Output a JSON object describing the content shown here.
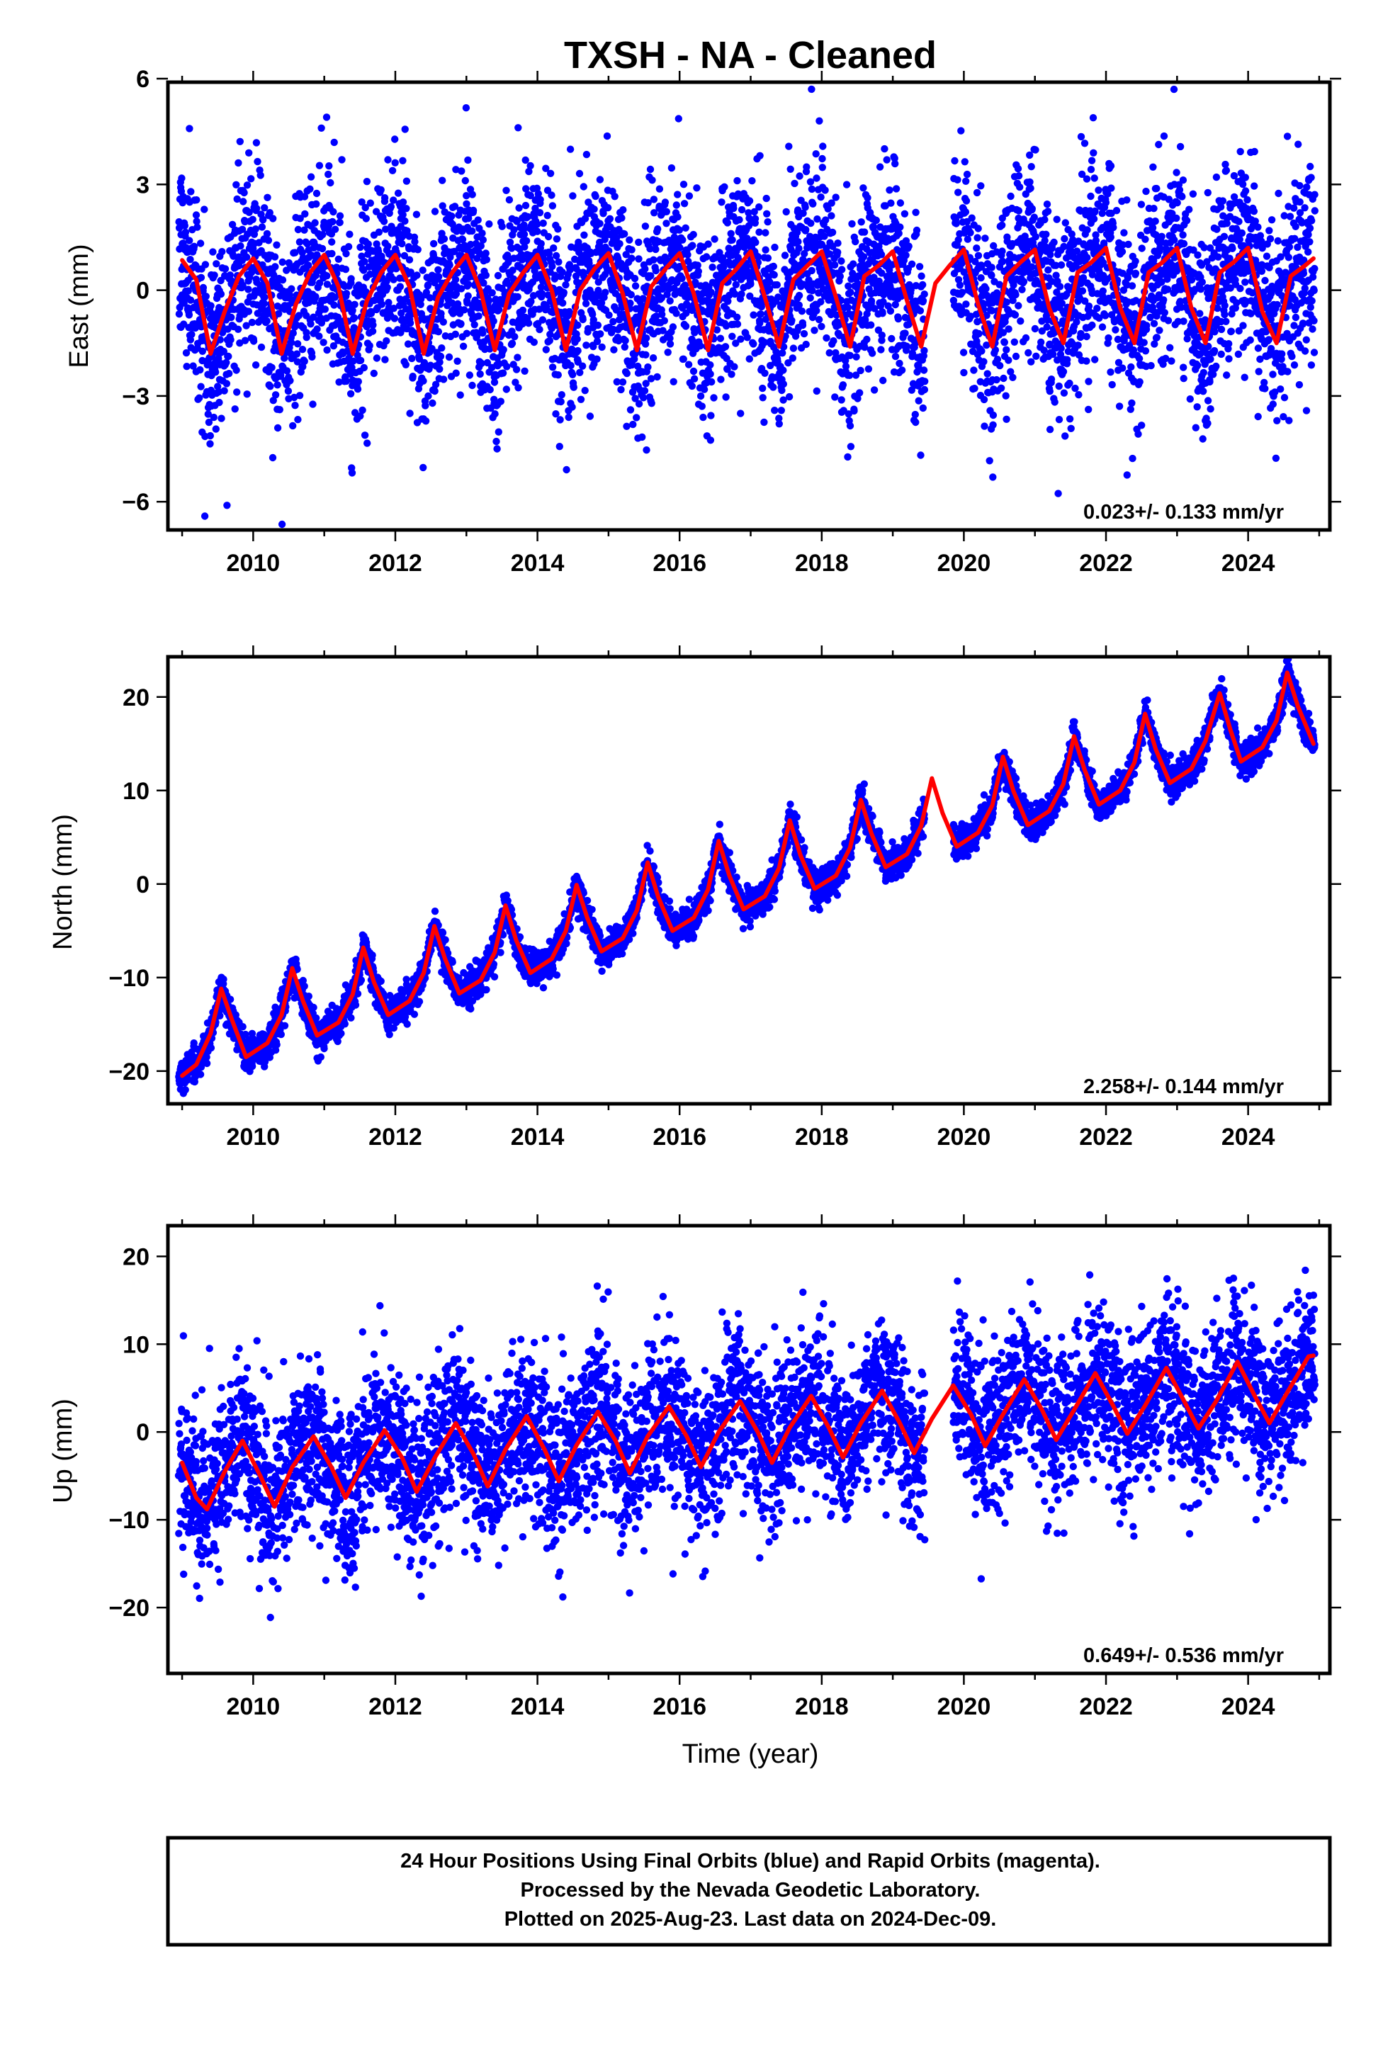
{
  "title": "TXSH  - NA - Cleaned",
  "xlabel": "Time (year)",
  "footer": {
    "line1": "24 Hour Positions Using Final Orbits (blue) and Rapid Orbits (magenta).",
    "line2": "Processed by the Nevada Geodetic Laboratory.",
    "line3": "Plotted on 2025-Aug-23. Last data on 2024-Dec-09."
  },
  "colors": {
    "data": "#0000ff",
    "model": "#ff0000",
    "frame": "#000000",
    "background": "#ffffff"
  },
  "chart_data": [
    {
      "type": "scatter",
      "panel": "east",
      "title": "",
      "xlabel": "",
      "ylabel": "East (mm)",
      "xlim": [
        2008.8,
        2025.15
      ],
      "ylim": [
        -6.8,
        5.9
      ],
      "xticks": [
        "2010",
        "2012",
        "2014",
        "2016",
        "2018",
        "2020",
        "2022",
        "2024"
      ],
      "yticks": [
        "6",
        "3",
        "0",
        "−3",
        "−6"
      ],
      "rate_label": "0.023+/- 0.133 mm/yr",
      "rate_mm_per_yr": 0.023,
      "series": [
        {
          "kind": "data",
          "marker": "dot",
          "color": "#0000ff",
          "x_range": [
            2008.95,
            2024.94
          ],
          "gap": [
            2019.45,
            2019.85
          ],
          "scatter_sd": 1.35
        },
        {
          "kind": "model",
          "line": true,
          "color": "#ff0000",
          "x": [
            2009.0,
            2009.2,
            2009.4,
            2009.6,
            2009.8,
            2010.0,
            2010.2,
            2010.4,
            2010.6,
            2010.8,
            2011.0,
            2011.2,
            2011.4,
            2011.6,
            2011.8,
            2012.0,
            2012.2,
            2012.4,
            2012.6,
            2012.8,
            2013.0,
            2013.2,
            2013.4,
            2013.6,
            2013.8,
            2014.0,
            2014.2,
            2014.4,
            2014.6,
            2014.8,
            2015.0,
            2015.2,
            2015.4,
            2015.6,
            2015.8,
            2016.0,
            2016.2,
            2016.4,
            2016.6,
            2016.8,
            2017.0,
            2017.2,
            2017.4,
            2017.6,
            2017.8,
            2018.0,
            2018.2,
            2018.4,
            2018.6,
            2018.8,
            2019.0,
            2019.2,
            2019.4,
            2019.6,
            2019.8,
            2020.0,
            2020.2,
            2020.4,
            2020.6,
            2020.8,
            2021.0,
            2021.2,
            2021.4,
            2021.6,
            2021.8,
            2022.0,
            2022.2,
            2022.4,
            2022.6,
            2022.8,
            2023.0,
            2023.2,
            2023.4,
            2023.6,
            2023.8,
            2024.0,
            2024.2,
            2024.4,
            2024.6,
            2024.8,
            2024.92
          ],
          "y": [
            0.85,
            0.3,
            -1.8,
            -0.6,
            0.4,
            0.9,
            0.2,
            -1.8,
            -0.4,
            0.5,
            1.0,
            0.1,
            -1.8,
            -0.3,
            0.5,
            1.0,
            0.1,
            -1.8,
            -0.2,
            0.5,
            1.0,
            0.0,
            -1.7,
            -0.1,
            0.5,
            1.0,
            0.0,
            -1.7,
            0.0,
            0.6,
            1.05,
            -0.1,
            -1.7,
            0.1,
            0.6,
            1.05,
            -0.1,
            -1.7,
            0.2,
            0.6,
            1.1,
            -0.2,
            -1.6,
            0.3,
            0.7,
            1.1,
            -0.2,
            -1.6,
            0.4,
            0.7,
            1.1,
            -0.3,
            -1.6,
            0.2,
            0.7,
            1.15,
            -0.4,
            -1.6,
            0.4,
            0.8,
            1.15,
            -0.5,
            -1.5,
            0.5,
            0.8,
            1.2,
            -0.5,
            -1.5,
            0.5,
            0.8,
            1.2,
            -0.5,
            -1.5,
            0.5,
            0.8,
            1.2,
            -0.6,
            -1.5,
            0.4,
            0.7,
            0.9
          ]
        }
      ]
    },
    {
      "type": "scatter",
      "panel": "north",
      "title": "",
      "xlabel": "",
      "ylabel": "North (mm)",
      "xlim": [
        2008.8,
        2025.15
      ],
      "ylim": [
        -23.5,
        24.3
      ],
      "xticks": [
        "2010",
        "2012",
        "2014",
        "2016",
        "2018",
        "2020",
        "2022",
        "2024"
      ],
      "yticks": [
        "20",
        "10",
        "0",
        "−10",
        "−20"
      ],
      "rate_label": "2.258+/- 0.144 mm/yr",
      "rate_mm_per_yr": 2.258,
      "series": [
        {
          "kind": "data",
          "marker": "dot",
          "color": "#0000ff",
          "x_range": [
            2008.95,
            2024.94
          ],
          "gap": [
            2019.45,
            2019.85
          ],
          "scatter_sd": 0.9
        },
        {
          "kind": "model",
          "line": true,
          "color": "#ff0000",
          "x": [
            2009.0,
            2009.2,
            2009.4,
            2009.55,
            2009.7,
            2009.9,
            2010.2,
            2010.4,
            2010.55,
            2010.7,
            2010.9,
            2011.2,
            2011.4,
            2011.55,
            2011.7,
            2011.9,
            2012.2,
            2012.4,
            2012.55,
            2012.7,
            2012.9,
            2013.2,
            2013.4,
            2013.55,
            2013.7,
            2013.9,
            2014.2,
            2014.4,
            2014.55,
            2014.7,
            2014.9,
            2015.2,
            2015.4,
            2015.55,
            2015.7,
            2015.9,
            2016.2,
            2016.4,
            2016.55,
            2016.7,
            2016.9,
            2017.2,
            2017.4,
            2017.55,
            2017.7,
            2017.9,
            2018.2,
            2018.4,
            2018.55,
            2018.7,
            2018.9,
            2019.2,
            2019.4,
            2019.55,
            2019.7,
            2019.9,
            2020.2,
            2020.4,
            2020.55,
            2020.7,
            2020.9,
            2021.2,
            2021.4,
            2021.55,
            2021.7,
            2021.9,
            2022.2,
            2022.4,
            2022.55,
            2022.7,
            2022.9,
            2023.2,
            2023.4,
            2023.6,
            2023.75,
            2023.9,
            2024.2,
            2024.4,
            2024.55,
            2024.7,
            2024.92
          ],
          "y": [
            -20.5,
            -19.3,
            -16.0,
            -11.2,
            -14.5,
            -18.5,
            -17.0,
            -14.0,
            -9.0,
            -12.5,
            -16.2,
            -14.8,
            -11.8,
            -6.8,
            -10.5,
            -14.0,
            -12.5,
            -9.5,
            -4.5,
            -8.0,
            -11.7,
            -10.3,
            -7.3,
            -2.3,
            -6.0,
            -9.5,
            -8.0,
            -5.0,
            -0.1,
            -3.6,
            -7.2,
            -5.8,
            -2.8,
            2.3,
            -1.4,
            -5.0,
            -3.6,
            -0.6,
            4.6,
            0.9,
            -2.7,
            -1.3,
            1.7,
            6.8,
            3.1,
            -0.5,
            0.9,
            3.9,
            9.0,
            5.4,
            1.8,
            3.2,
            6.2,
            11.3,
            7.6,
            4.0,
            5.5,
            8.4,
            13.6,
            9.9,
            6.3,
            7.8,
            10.7,
            15.8,
            12.2,
            8.5,
            10.0,
            13.0,
            18.2,
            14.4,
            10.8,
            12.3,
            15.3,
            20.4,
            16.5,
            13.1,
            14.6,
            17.5,
            22.6,
            19.0,
            15.0
          ]
        }
      ]
    },
    {
      "type": "scatter",
      "panel": "up",
      "title": "",
      "xlabel": "Time (year)",
      "ylabel": "Up (mm)",
      "xlim": [
        2008.8,
        2025.15
      ],
      "ylim": [
        -27.5,
        23.5
      ],
      "xticks": [
        "2010",
        "2012",
        "2014",
        "2016",
        "2018",
        "2020",
        "2022",
        "2024"
      ],
      "yticks": [
        "20",
        "10",
        "0",
        "−10",
        "−20"
      ],
      "rate_label": "0.649+/- 0.536 mm/yr",
      "rate_mm_per_yr": 0.649,
      "series": [
        {
          "kind": "data",
          "marker": "dot",
          "color": "#0000ff",
          "x_range": [
            2008.95,
            2024.94
          ],
          "gap": [
            2019.45,
            2019.85
          ],
          "scatter_sd": 4.6
        },
        {
          "kind": "model",
          "line": true,
          "color": "#ff0000",
          "x": [
            2009.0,
            2009.2,
            2009.35,
            2009.6,
            2009.85,
            2010.1,
            2010.3,
            2010.55,
            2010.85,
            2011.1,
            2011.3,
            2011.55,
            2011.85,
            2012.1,
            2012.3,
            2012.55,
            2012.85,
            2013.1,
            2013.3,
            2013.55,
            2013.85,
            2014.1,
            2014.3,
            2014.55,
            2014.85,
            2015.1,
            2015.3,
            2015.55,
            2015.85,
            2016.1,
            2016.3,
            2016.55,
            2016.85,
            2017.1,
            2017.3,
            2017.55,
            2017.85,
            2018.1,
            2018.3,
            2018.55,
            2018.85,
            2019.1,
            2019.3,
            2019.55,
            2019.85,
            2020.1,
            2020.3,
            2020.55,
            2020.85,
            2021.1,
            2021.3,
            2021.55,
            2021.85,
            2022.1,
            2022.3,
            2022.55,
            2022.85,
            2023.1,
            2023.3,
            2023.55,
            2023.85,
            2024.1,
            2024.3,
            2024.55,
            2024.85,
            2024.92
          ],
          "y": [
            -3.5,
            -7.5,
            -8.8,
            -4.5,
            -1.0,
            -5.0,
            -8.5,
            -4.0,
            -0.5,
            -4.0,
            -7.5,
            -3.5,
            0.2,
            -3.0,
            -6.8,
            -3.0,
            1.0,
            -2.5,
            -6.2,
            -2.0,
            1.8,
            -2.0,
            -5.6,
            -1.5,
            2.3,
            -1.0,
            -4.7,
            -0.5,
            2.9,
            -0.5,
            -4.0,
            -0.0,
            3.5,
            0.0,
            -3.5,
            0.5,
            4.1,
            0.5,
            -2.9,
            1.0,
            4.7,
            1.0,
            -2.4,
            1.5,
            5.3,
            2.0,
            -1.6,
            2.0,
            6.0,
            2.5,
            -0.9,
            2.5,
            6.7,
            3.0,
            -0.2,
            3.0,
            7.3,
            3.5,
            0.4,
            3.5,
            8.0,
            4.0,
            1.0,
            4.5,
            8.6,
            8.7
          ]
        }
      ]
    }
  ]
}
